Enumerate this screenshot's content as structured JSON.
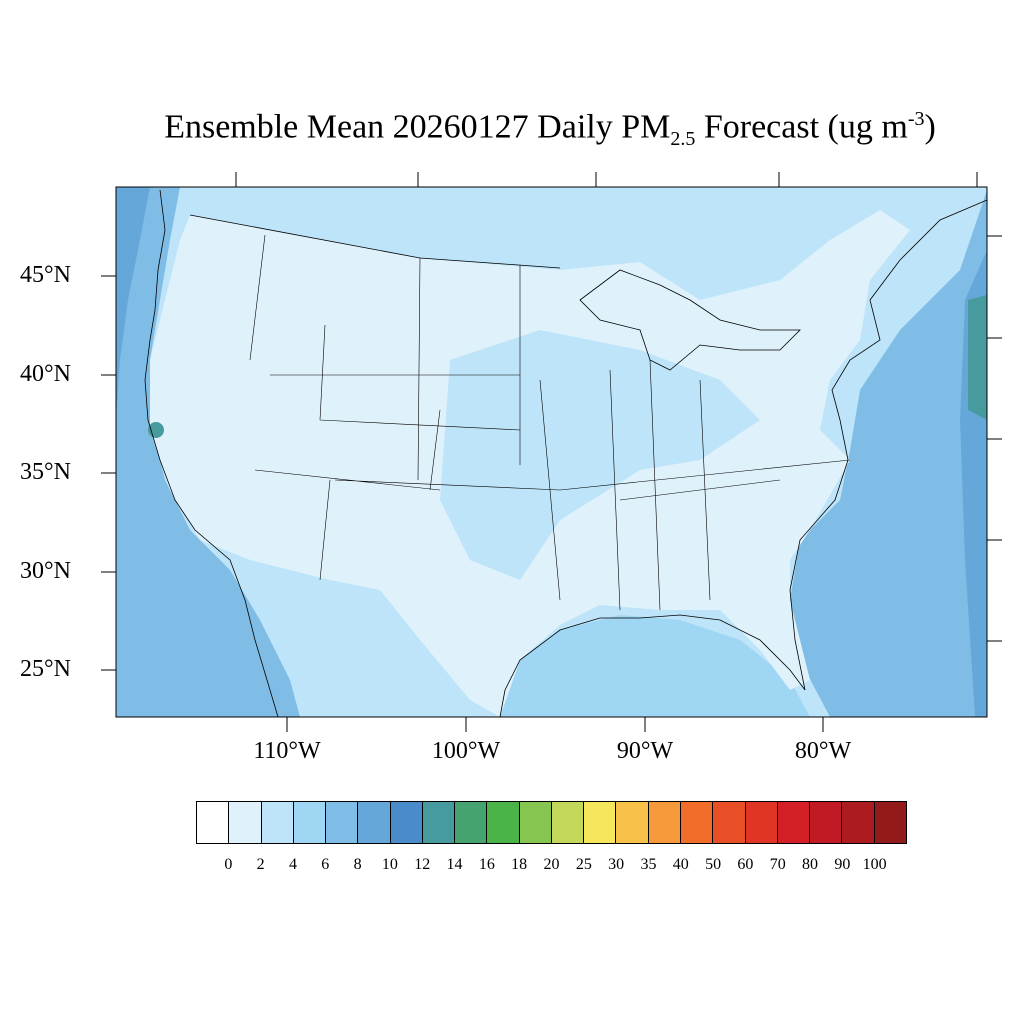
{
  "title": {
    "main": "Ensemble Mean 20260127 Daily PM",
    "sub": "2.5",
    "mid": " Forecast (ug m",
    "sup": "-3",
    "end": ")"
  },
  "lat_labels": [
    "45°N",
    "40°N",
    "35°N",
    "30°N",
    "25°N"
  ],
  "lon_labels": [
    "110°W",
    "100°W",
    "90°W",
    "80°W"
  ],
  "colorbar": {
    "labels": [
      "0",
      "2",
      "4",
      "6",
      "8",
      "10",
      "12",
      "14",
      "16",
      "18",
      "20",
      "25",
      "30",
      "35",
      "40",
      "50",
      "60",
      "70",
      "80",
      "90",
      "100"
    ],
    "colors": [
      "#ffffff",
      "#dff1fb",
      "#bde4f8",
      "#9fd6f4",
      "#80bde6",
      "#66a7da",
      "#4a8cc9",
      "#479a9e",
      "#45a36f",
      "#4bb448",
      "#86c650",
      "#c3d75a",
      "#f6e65b",
      "#f8c14a",
      "#f5993b",
      "#f06e2a",
      "#e84f27",
      "#e03525",
      "#d41f26",
      "#c21a25",
      "#ab1b20",
      "#931a1b"
    ]
  },
  "map_colors": {
    "ocean_pacific": "#80bde6",
    "ocean_atlantic": "#66a7da",
    "land_low": "#dff1fb",
    "land_mid": "#bde4f8",
    "land_high": "#9fd6f4",
    "hotspot": "#479a9e"
  }
}
